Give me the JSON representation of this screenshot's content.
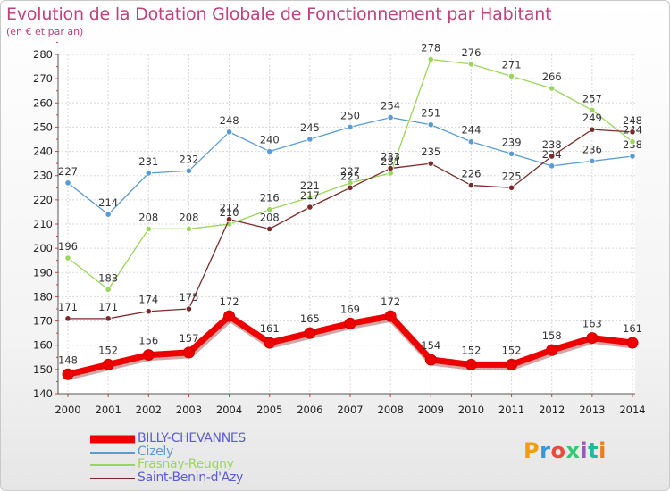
{
  "chart_data": {
    "type": "line",
    "title": "Evolution de la Dotation Globale de Fonctionnement par Habitant",
    "subtitle": "(en € et par an)",
    "xlabel": "",
    "ylabel": "",
    "x": [
      "2000",
      "2001",
      "2002",
      "2003",
      "2004",
      "2005",
      "2006",
      "2007",
      "2008",
      "2009",
      "2010",
      "2011",
      "2012",
      "2013",
      "2014"
    ],
    "ylim": [
      140,
      280
    ],
    "yticks": [
      "140",
      "150",
      "160",
      "170",
      "180",
      "190",
      "200",
      "210",
      "220",
      "230",
      "240",
      "250",
      "260",
      "270",
      "280"
    ],
    "grid": true,
    "legend_position": "bottom-left",
    "series": [
      {
        "name": "BILLY-CHEVANNES",
        "color": "#ee0000",
        "text_color": "#5b5bd6",
        "values": [
          148,
          152,
          156,
          157,
          172,
          161,
          165,
          169,
          172,
          154,
          152,
          152,
          158,
          163,
          161
        ]
      },
      {
        "name": "Cizely",
        "color": "#5b9bd5",
        "text_color": "#5b9bd5",
        "values": [
          227,
          214,
          231,
          232,
          248,
          240,
          245,
          250,
          254,
          251,
          244,
          239,
          234,
          236,
          238
        ]
      },
      {
        "name": "Frasnay-Reugny",
        "color": "#9bd55b",
        "text_color": "#9bd55b",
        "values": [
          196,
          183,
          208,
          208,
          210,
          216,
          221,
          227,
          231,
          278,
          276,
          271,
          266,
          257,
          244
        ]
      },
      {
        "name": "Saint-Benin-d'Azy",
        "color": "#7a2a2a",
        "text_color": "#5b5bd6",
        "values": [
          171,
          171,
          174,
          175,
          212,
          208,
          217,
          225,
          233,
          235,
          226,
          225,
          238,
          249,
          248
        ]
      }
    ]
  },
  "logo": {
    "text": "Proxiti",
    "colors": [
      "#f39c12",
      "#3498db",
      "#e74c3c",
      "#2ecc71",
      "#9b59b6",
      "#1abc9c",
      "#e67e22"
    ]
  }
}
